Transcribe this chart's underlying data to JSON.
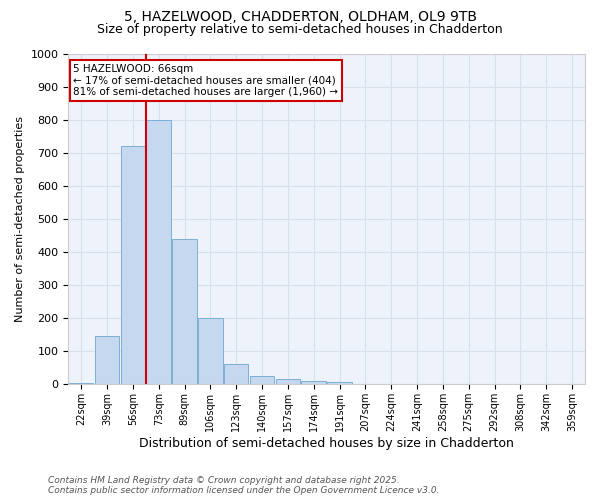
{
  "title1": "5, HAZELWOOD, CHADDERTON, OLDHAM, OL9 9TB",
  "title2": "Size of property relative to semi-detached houses in Chadderton",
  "xlabel": "Distribution of semi-detached houses by size in Chadderton",
  "ylabel": "Number of semi-detached properties",
  "categories": [
    "22sqm",
    "39sqm",
    "56sqm",
    "73sqm",
    "89sqm",
    "106sqm",
    "123sqm",
    "140sqm",
    "157sqm",
    "174sqm",
    "191sqm",
    "207sqm",
    "224sqm",
    "241sqm",
    "258sqm",
    "275sqm",
    "292sqm",
    "308sqm",
    "342sqm",
    "359sqm"
  ],
  "values": [
    5,
    145,
    720,
    800,
    440,
    200,
    60,
    25,
    15,
    10,
    8,
    0,
    0,
    0,
    0,
    0,
    0,
    0,
    0,
    0
  ],
  "bar_color": "#c5d8f0",
  "bar_edge_color": "#7bafd4",
  "vline_color": "#cc0000",
  "vline_x": 2.5,
  "ylim": [
    0,
    1000
  ],
  "annotation_title": "5 HAZELWOOD: 66sqm",
  "annotation_line1": "← 17% of semi-detached houses are smaller (404)",
  "annotation_line2": "81% of semi-detached houses are larger (1,960) →",
  "annotation_box_color": "#ffffff",
  "annotation_box_edge": "#cc0000",
  "footer": "Contains HM Land Registry data © Crown copyright and database right 2025.\nContains public sector information licensed under the Open Government Licence v3.0.",
  "grid_color": "#d8e0ed",
  "bg_color": "#eef2fa",
  "title1_fontsize": 10,
  "title2_fontsize": 9,
  "yticks": [
    0,
    100,
    200,
    300,
    400,
    500,
    600,
    700,
    800,
    900,
    1000
  ]
}
